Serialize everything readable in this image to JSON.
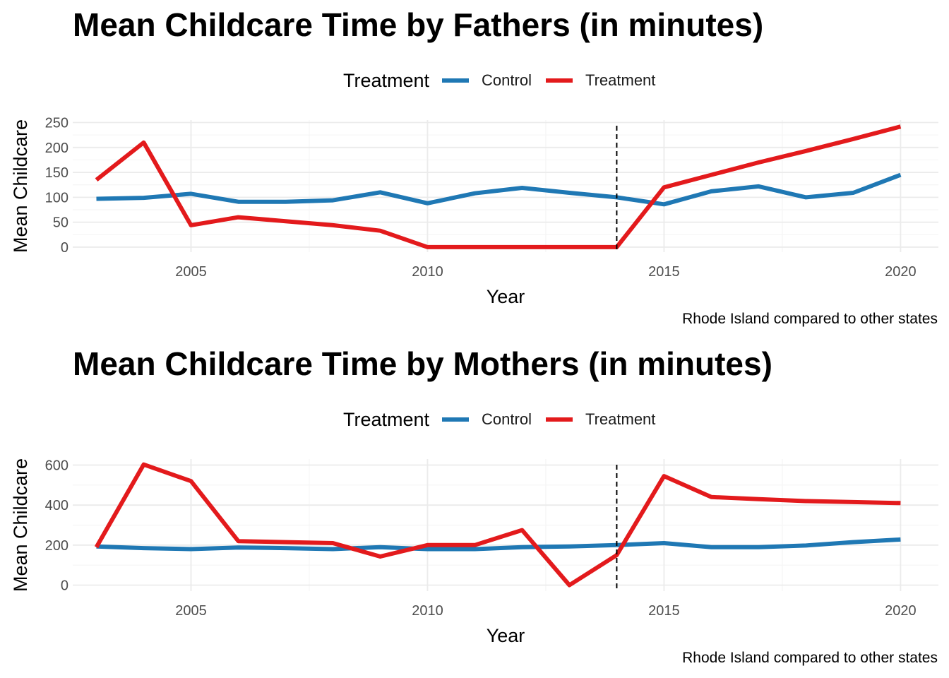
{
  "colors": {
    "Control": "#1f78b4",
    "Treatment": "#e31a1c",
    "grid_major": "#ebebeb",
    "grid_minor": "#f5f5f5"
  },
  "chart_data": [
    {
      "type": "line",
      "title": "Mean Childcare Time by Fathers (in minutes)",
      "xlabel": "Year",
      "ylabel": "Mean Childcare",
      "caption": "Rhode Island compared to other states",
      "legend_title": "Treatment",
      "legend_position": "top",
      "xlim": [
        2002.5,
        2020.8
      ],
      "ylim": [
        -10,
        255
      ],
      "x_ticks": [
        2005,
        2010,
        2015,
        2020
      ],
      "y_ticks": [
        0,
        50,
        100,
        150,
        200,
        250
      ],
      "vline": 2014,
      "grid": true,
      "x": [
        2003,
        2004,
        2005,
        2006,
        2007,
        2008,
        2009,
        2010,
        2011,
        2012,
        2013,
        2014,
        2015,
        2016,
        2017,
        2018,
        2019,
        2020
      ],
      "series": [
        {
          "name": "Control",
          "values": [
            97,
            99,
            107,
            91,
            91,
            94,
            110,
            88,
            108,
            119,
            109,
            100,
            86,
            112,
            122,
            100,
            109,
            145
          ]
        },
        {
          "name": "Treatment",
          "values": [
            135,
            210,
            44,
            60,
            52,
            44,
            33,
            0,
            0,
            0,
            0,
            0,
            120,
            145,
            170,
            193,
            217,
            242
          ]
        }
      ]
    },
    {
      "type": "line",
      "title": "Mean Childcare Time by Mothers (in minutes)",
      "xlabel": "Year",
      "ylabel": "Mean Childcare",
      "caption": "Rhode Island compared to other states",
      "legend_title": "Treatment",
      "legend_position": "top",
      "xlim": [
        2002.5,
        2020.8
      ],
      "ylim": [
        -30,
        630
      ],
      "x_ticks": [
        2005,
        2010,
        2015,
        2020
      ],
      "y_ticks": [
        0,
        200,
        400,
        600
      ],
      "vline": 2014,
      "grid": true,
      "x": [
        2003,
        2004,
        2005,
        2006,
        2007,
        2008,
        2009,
        2010,
        2011,
        2012,
        2013,
        2014,
        2015,
        2016,
        2017,
        2018,
        2019,
        2020
      ],
      "series": [
        {
          "name": "Control",
          "values": [
            193,
            185,
            180,
            188,
            185,
            180,
            190,
            180,
            180,
            190,
            193,
            200,
            210,
            190,
            190,
            198,
            215,
            228
          ]
        },
        {
          "name": "Treatment",
          "values": [
            190,
            603,
            520,
            220,
            215,
            210,
            143,
            200,
            200,
            275,
            0,
            150,
            545,
            440,
            430,
            420,
            415,
            410
          ]
        }
      ]
    }
  ]
}
